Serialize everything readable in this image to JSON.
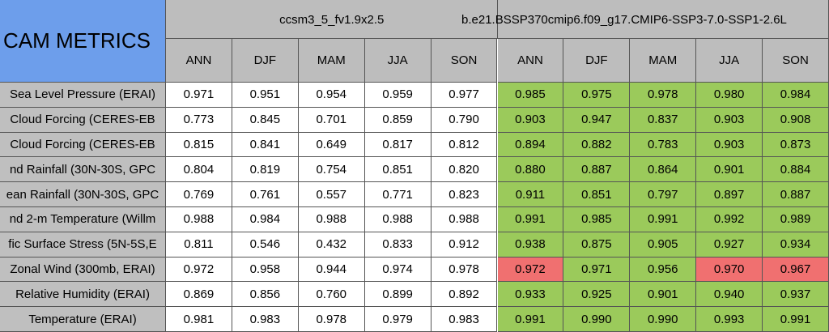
{
  "table": {
    "title": "CAM METRICS",
    "groups": [
      "ccsm3_5_fv1.9x2.5",
      "b.e21.BSSP370cmip6.f09_g17.CMIP6-SSP3-7.0-SSP1-2.6L"
    ],
    "seasons": [
      "ANN",
      "DJF",
      "MAM",
      "JJA",
      "SON",
      "ANN",
      "DJF",
      "MAM",
      "JJA",
      "SON"
    ],
    "header_color": "#bdbdbd",
    "rows": [
      {
        "label": "Sea Level Pressure (ERAI)",
        "values": [
          "0.971",
          "0.951",
          "0.954",
          "0.959",
          "0.977",
          "0.985",
          "0.975",
          "0.978",
          "0.980",
          "0.984"
        ],
        "fills": [
          "#ffffff",
          "#ffffff",
          "#ffffff",
          "#ffffff",
          "#ffffff",
          "#9bca5b",
          "#9bca5b",
          "#9bca5b",
          "#9bca5b",
          "#9bca5b"
        ]
      },
      {
        "label": "Cloud Forcing (CERES-EB",
        "values": [
          "0.773",
          "0.845",
          "0.701",
          "0.859",
          "0.790",
          "0.903",
          "0.947",
          "0.837",
          "0.903",
          "0.908"
        ],
        "fills": [
          "#ffffff",
          "#ffffff",
          "#ffffff",
          "#ffffff",
          "#ffffff",
          "#9bca5b",
          "#9bca5b",
          "#9bca5b",
          "#9bca5b",
          "#9bca5b"
        ]
      },
      {
        "label": "Cloud Forcing (CERES-EB",
        "values": [
          "0.815",
          "0.841",
          "0.649",
          "0.817",
          "0.812",
          "0.894",
          "0.882",
          "0.783",
          "0.903",
          "0.873"
        ],
        "fills": [
          "#ffffff",
          "#ffffff",
          "#ffffff",
          "#ffffff",
          "#ffffff",
          "#9bca5b",
          "#9bca5b",
          "#9bca5b",
          "#9bca5b",
          "#9bca5b"
        ]
      },
      {
        "label": "nd Rainfall (30N-30S, GPC",
        "values": [
          "0.804",
          "0.819",
          "0.754",
          "0.851",
          "0.820",
          "0.880",
          "0.887",
          "0.864",
          "0.901",
          "0.884"
        ],
        "fills": [
          "#ffffff",
          "#ffffff",
          "#ffffff",
          "#ffffff",
          "#ffffff",
          "#9bca5b",
          "#9bca5b",
          "#9bca5b",
          "#9bca5b",
          "#9bca5b"
        ]
      },
      {
        "label": "ean Rainfall (30N-30S, GPC",
        "values": [
          "0.769",
          "0.761",
          "0.557",
          "0.771",
          "0.823",
          "0.911",
          "0.851",
          "0.797",
          "0.897",
          "0.887"
        ],
        "fills": [
          "#ffffff",
          "#ffffff",
          "#ffffff",
          "#ffffff",
          "#ffffff",
          "#9bca5b",
          "#9bca5b",
          "#9bca5b",
          "#9bca5b",
          "#9bca5b"
        ]
      },
      {
        "label": "nd 2-m Temperature (Willm",
        "values": [
          "0.988",
          "0.984",
          "0.988",
          "0.988",
          "0.988",
          "0.991",
          "0.985",
          "0.991",
          "0.992",
          "0.989"
        ],
        "fills": [
          "#ffffff",
          "#ffffff",
          "#ffffff",
          "#ffffff",
          "#ffffff",
          "#9bca5b",
          "#9bca5b",
          "#9bca5b",
          "#9bca5b",
          "#9bca5b"
        ]
      },
      {
        "label": "fic Surface Stress (5N-5S,E",
        "values": [
          "0.811",
          "0.546",
          "0.432",
          "0.833",
          "0.912",
          "0.938",
          "0.875",
          "0.905",
          "0.927",
          "0.934"
        ],
        "fills": [
          "#ffffff",
          "#ffffff",
          "#ffffff",
          "#ffffff",
          "#ffffff",
          "#9bca5b",
          "#9bca5b",
          "#9bca5b",
          "#9bca5b",
          "#9bca5b"
        ]
      },
      {
        "label": "Zonal Wind (300mb, ERAI)",
        "values": [
          "0.972",
          "0.958",
          "0.944",
          "0.974",
          "0.978",
          "0.972",
          "0.971",
          "0.956",
          "0.970",
          "0.967"
        ],
        "fills": [
          "#ffffff",
          "#ffffff",
          "#ffffff",
          "#ffffff",
          "#ffffff",
          "#f07070",
          "#9bca5b",
          "#9bca5b",
          "#f07070",
          "#f07070"
        ]
      },
      {
        "label": "Relative Humidity (ERAI)",
        "values": [
          "0.869",
          "0.856",
          "0.760",
          "0.899",
          "0.892",
          "0.933",
          "0.925",
          "0.901",
          "0.940",
          "0.937"
        ],
        "fills": [
          "#ffffff",
          "#ffffff",
          "#ffffff",
          "#ffffff",
          "#ffffff",
          "#9bca5b",
          "#9bca5b",
          "#9bca5b",
          "#9bca5b",
          "#9bca5b"
        ]
      },
      {
        "label": "Temperature (ERAI)",
        "values": [
          "0.981",
          "0.983",
          "0.978",
          "0.979",
          "0.983",
          "0.991",
          "0.990",
          "0.990",
          "0.993",
          "0.991"
        ],
        "fills": [
          "#ffffff",
          "#ffffff",
          "#ffffff",
          "#ffffff",
          "#ffffff",
          "#9bca5b",
          "#9bca5b",
          "#9bca5b",
          "#9bca5b",
          "#9bca5b"
        ]
      }
    ]
  }
}
